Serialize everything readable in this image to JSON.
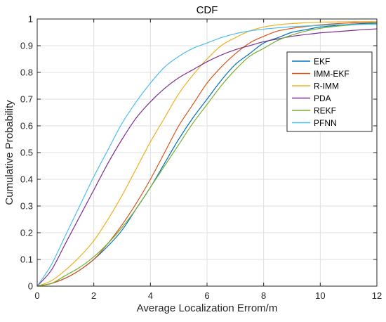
{
  "chart_data": {
    "type": "line",
    "title": "CDF",
    "xlabel": "Average Localization Errom/m",
    "ylabel": "Cumulative Probability",
    "xlim": [
      0,
      12
    ],
    "ylim": [
      0,
      1
    ],
    "xticks": [
      "0",
      "2",
      "4",
      "6",
      "8",
      "10",
      "12"
    ],
    "yticks": [
      "0",
      "0.1",
      "0.2",
      "0.3",
      "0.4",
      "0.5",
      "0.6",
      "0.7",
      "0.8",
      "0.9",
      "1"
    ],
    "grid": true,
    "legend_position": "top-right",
    "x": [
      0,
      0.5,
      1,
      1.5,
      2,
      2.5,
      3,
      3.5,
      4,
      4.5,
      5,
      5.5,
      6,
      6.5,
      7,
      7.5,
      8,
      8.5,
      9,
      9.5,
      10,
      10.5,
      11,
      11.5,
      12
    ],
    "series": [
      {
        "name": "EKF",
        "color": "#0072BD",
        "values": [
          0,
          0.01,
          0.03,
          0.06,
          0.1,
          0.15,
          0.21,
          0.29,
          0.37,
          0.46,
          0.55,
          0.63,
          0.7,
          0.77,
          0.83,
          0.87,
          0.91,
          0.93,
          0.95,
          0.96,
          0.97,
          0.975,
          0.98,
          0.983,
          0.985
        ]
      },
      {
        "name": "IMM-EKF",
        "color": "#D95319",
        "values": [
          0,
          0.01,
          0.03,
          0.06,
          0.1,
          0.16,
          0.23,
          0.31,
          0.4,
          0.5,
          0.6,
          0.68,
          0.76,
          0.82,
          0.87,
          0.91,
          0.935,
          0.955,
          0.965,
          0.972,
          0.978,
          0.982,
          0.985,
          0.987,
          0.989
        ]
      },
      {
        "name": "R-IMM",
        "color": "#EDB120",
        "values": [
          0,
          0.02,
          0.06,
          0.11,
          0.17,
          0.25,
          0.34,
          0.44,
          0.54,
          0.63,
          0.72,
          0.79,
          0.85,
          0.9,
          0.93,
          0.955,
          0.97,
          0.978,
          0.983,
          0.986,
          0.988,
          0.989,
          0.99,
          0.99,
          0.99
        ]
      },
      {
        "name": "PDA",
        "color": "#7E2F8E",
        "values": [
          0,
          0.06,
          0.16,
          0.26,
          0.36,
          0.46,
          0.55,
          0.63,
          0.69,
          0.74,
          0.78,
          0.81,
          0.84,
          0.865,
          0.885,
          0.9,
          0.915,
          0.925,
          0.935,
          0.942,
          0.948,
          0.952,
          0.956,
          0.96,
          0.963
        ]
      },
      {
        "name": "REKF",
        "color": "#77AC30",
        "values": [
          0,
          0.01,
          0.04,
          0.07,
          0.11,
          0.16,
          0.22,
          0.29,
          0.37,
          0.45,
          0.53,
          0.61,
          0.68,
          0.75,
          0.81,
          0.86,
          0.89,
          0.92,
          0.94,
          0.955,
          0.965,
          0.972,
          0.977,
          0.98,
          0.982
        ]
      },
      {
        "name": "PFNN",
        "color": "#4DBEEE",
        "values": [
          0,
          0.08,
          0.19,
          0.3,
          0.41,
          0.51,
          0.61,
          0.69,
          0.76,
          0.82,
          0.86,
          0.89,
          0.91,
          0.93,
          0.945,
          0.955,
          0.962,
          0.967,
          0.971,
          0.974,
          0.976,
          0.978,
          0.979,
          0.98,
          0.98
        ]
      }
    ]
  }
}
